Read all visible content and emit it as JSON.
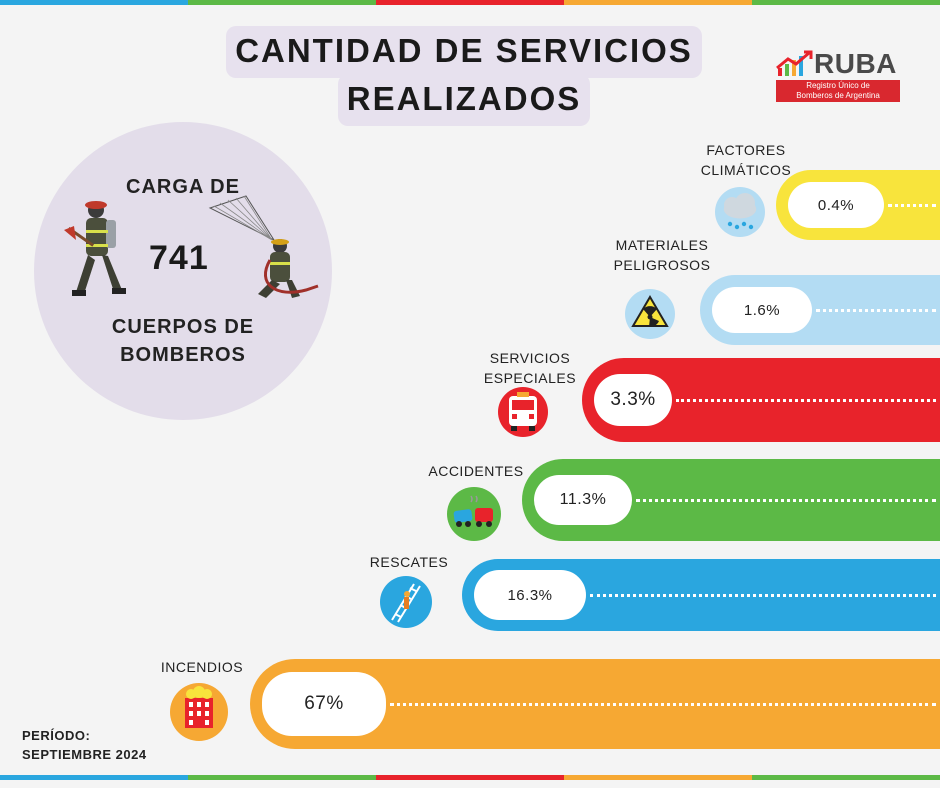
{
  "header": {
    "title_line1": "CANTIDAD DE SERVICIOS",
    "title_line2": "REALIZADOS"
  },
  "logo": {
    "name": "RUBA",
    "subtitle_line1": "Registro Único de",
    "subtitle_line2": "Bomberos de Argentina"
  },
  "summary": {
    "top_text": "CARGA DE",
    "number": "741",
    "bottom_line1": "CUERPOS DE",
    "bottom_line2": "BOMBEROS"
  },
  "period": {
    "label": "PERÍODO:",
    "value": "SEPTIEMBRE 2024"
  },
  "chart_data": {
    "type": "bar",
    "categories": [
      "FACTORES CLIMÁTICOS",
      "MATERIALES PELIGROSOS",
      "SERVICIOS ESPECIALES",
      "ACCIDENTES",
      "RESCATES",
      "INCENDIOS"
    ],
    "values": [
      0.4,
      1.6,
      3.3,
      11.3,
      16.3,
      67
    ],
    "value_labels": [
      "0.4%",
      "1.6%",
      "3.3%",
      "11.3%",
      "16.3%",
      "67%"
    ],
    "label_lines": [
      [
        "FACTORES",
        "CLIMÁTICOS"
      ],
      [
        "MATERIALES",
        "PELIGROSOS"
      ],
      [
        "SERVICIOS",
        "ESPECIALES"
      ],
      [
        "ACCIDENTES"
      ],
      [
        "RESCATES"
      ],
      [
        "INCENDIOS"
      ]
    ],
    "colors": [
      "#f8e43c",
      "#b3dcf3",
      "#e8232b",
      "#5cb946",
      "#2aa6df",
      "#f6a833"
    ],
    "icons": [
      "rain-cloud-icon",
      "radiation-icon",
      "fire-truck-icon",
      "car-crash-icon",
      "ladder-rescue-icon",
      "burning-building-icon"
    ],
    "unit": "%"
  },
  "stripe_colors": [
    "#2aa6df",
    "#5cb946",
    "#e8232b",
    "#f6a833",
    "#5cb946"
  ]
}
